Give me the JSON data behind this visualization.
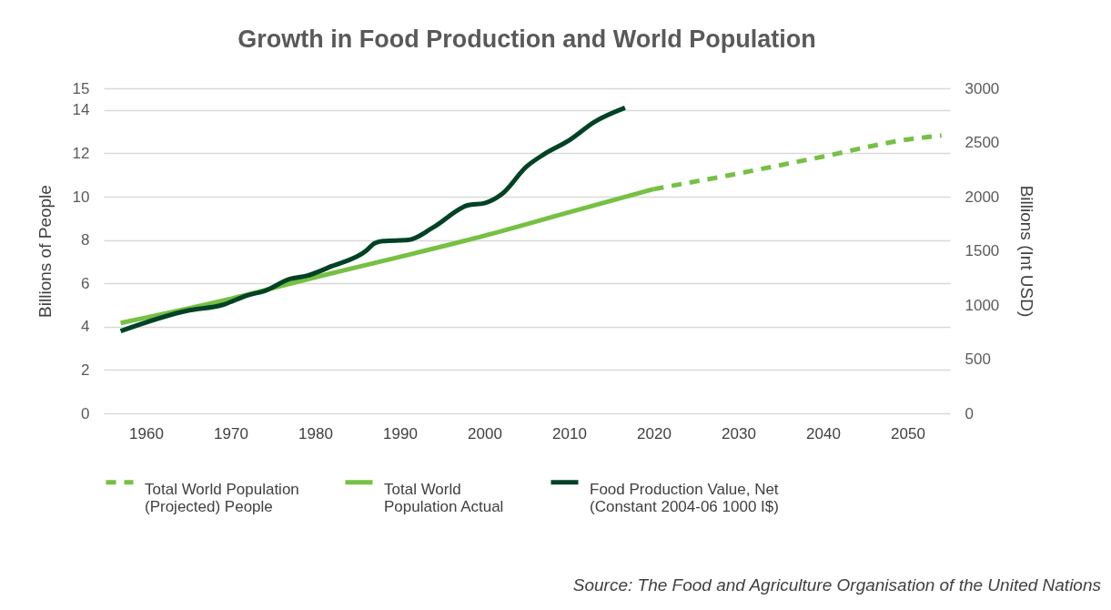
{
  "chart_data": {
    "type": "line",
    "title": "Growth in Food Production and World Population",
    "ylabel": "Billions of People",
    "y2label": "Billions (Int USD)",
    "xlim": [
      1955,
      2055
    ],
    "xticks": [
      1960,
      1970,
      1980,
      1990,
      2000,
      2010,
      2020,
      2030,
      2040,
      2050
    ],
    "ylim": [
      0,
      15
    ],
    "yticks": [
      0,
      2,
      4,
      6,
      8,
      10,
      12,
      14,
      15
    ],
    "y2lim": [
      0,
      3000
    ],
    "y2ticks": [
      0,
      500,
      1000,
      1500,
      2000,
      2500,
      3000
    ],
    "grid": "y",
    "legend": "bottom",
    "marker": "none",
    "annotations": [
      "Source: The Food and Agriculture Organisation of the United Nations"
    ],
    "series": [
      {
        "name": "Total World Population (Projected) People",
        "color": "#76c043",
        "line_style": "dashed",
        "x": [
          2020,
          2030,
          2040,
          2050,
          2054
        ],
        "values": [
          10.35,
          11.07,
          11.85,
          12.64,
          12.82
        ]
      },
      {
        "name": "Total World Population Actual",
        "color": "#76c043",
        "line_style": "solid",
        "x": [
          1957,
          1970,
          1980,
          1990,
          2000,
          2010,
          2020
        ],
        "values": [
          4.17,
          5.29,
          6.28,
          7.22,
          8.2,
          9.28,
          10.35
        ]
      },
      {
        "name": "Food Production Value, Net (Constant 2004-06 1000 I$)",
        "color": "#004225",
        "line_style": "solid",
        "axis": "y2",
        "x": [
          1957,
          1965,
          1969,
          1972,
          1974,
          1977,
          1979,
          1982,
          1986,
          1987,
          1988,
          1991,
          1994,
          1998,
          2000,
          2002,
          2005,
          2007,
          2010,
          2013,
          2016.6
        ],
        "values": [
          760,
          950,
          1000,
          1090,
          1130,
          1240,
          1270,
          1360,
          1500,
          1570,
          1590,
          1600,
          1720,
          1920,
          1940,
          2020,
          2280,
          2390,
          2520,
          2690,
          2820
        ]
      }
    ]
  }
}
